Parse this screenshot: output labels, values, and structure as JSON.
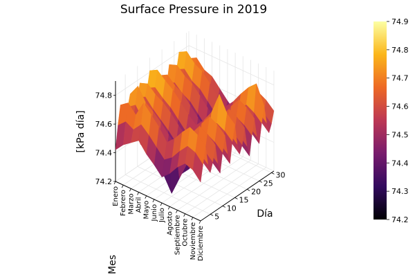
{
  "chart_data": {
    "type": "surface",
    "title": "Surface Pressure in 2019",
    "xlabel": "Mes",
    "ylabel": "Día",
    "zlabel": "[kPa día]",
    "x_categories": [
      "Enero",
      "Febrero",
      "Marzo",
      "Abril",
      "Mayo",
      "Junio",
      "Julio",
      "Agosto",
      "Septiembre",
      "Octubre",
      "Noviembre",
      "Diciembre"
    ],
    "y_ticks": [
      5,
      10,
      15,
      20,
      25,
      30
    ],
    "z_ticks": [
      "74.2",
      "74.4",
      "74.6",
      "74.8"
    ],
    "z_range": [
      74.2,
      74.9
    ],
    "y_range": [
      1,
      31
    ],
    "colorbar_ticks": [
      "74.2",
      "74.3",
      "74.4",
      "74.5",
      "74.6",
      "74.7",
      "74.8",
      "74.9"
    ],
    "colormap": [
      "#000004",
      "#320a5e",
      "#781c6d",
      "#bc3754",
      "#ed6925",
      "#fbb61a",
      "#fcffa4"
    ],
    "z_values": [
      [
        74.42,
        74.58,
        74.71,
        74.62,
        74.55,
        74.66,
        74.74,
        74.6,
        74.52,
        74.68,
        74.77,
        74.63,
        74.57,
        74.7,
        74.81,
        74.65,
        74.56,
        74.62,
        74.73,
        74.59,
        74.51,
        74.64,
        74.76,
        74.61,
        74.55,
        74.69,
        74.8,
        74.66,
        74.58,
        74.63,
        74.71
      ],
      [
        74.48,
        74.63,
        74.75,
        74.66,
        74.58,
        74.7,
        74.82,
        74.64,
        74.55,
        74.71,
        74.79,
        74.67,
        74.6,
        74.73,
        74.84,
        74.68,
        74.59,
        74.65,
        74.76,
        74.62,
        74.54,
        74.67,
        74.78,
        74.64,
        74.58,
        74.72,
        74.83,
        74.69,
        74.61,
        74.66,
        74.74
      ],
      [
        74.52,
        74.6,
        74.69,
        74.58,
        74.46,
        74.62,
        74.73,
        74.57,
        74.5,
        74.65,
        74.74,
        74.61,
        74.53,
        74.68,
        74.79,
        74.63,
        74.55,
        74.6,
        74.71,
        74.57,
        74.49,
        74.62,
        74.73,
        74.59,
        74.53,
        74.66,
        74.77,
        74.64,
        74.56,
        74.61,
        74.68
      ],
      [
        74.56,
        74.66,
        74.8,
        74.63,
        74.51,
        74.58,
        74.69,
        74.55,
        74.47,
        74.6,
        74.71,
        74.58,
        74.5,
        74.64,
        74.75,
        74.6,
        74.52,
        74.57,
        74.68,
        74.54,
        74.46,
        74.59,
        74.7,
        74.56,
        74.5,
        74.63,
        74.74,
        74.61,
        74.53,
        74.58,
        74.66
      ],
      [
        74.49,
        74.61,
        74.74,
        74.59,
        74.42,
        74.51,
        74.64,
        74.49,
        74.41,
        74.55,
        74.66,
        74.52,
        74.44,
        74.58,
        74.69,
        74.54,
        74.46,
        74.51,
        74.62,
        74.48,
        74.4,
        74.53,
        74.64,
        74.5,
        74.44,
        74.57,
        74.68,
        74.55,
        74.47,
        74.52,
        74.6
      ],
      [
        74.44,
        74.55,
        74.68,
        74.52,
        74.32,
        74.45,
        74.58,
        74.43,
        74.36,
        74.49,
        74.6,
        74.46,
        74.38,
        74.52,
        74.63,
        74.48,
        74.4,
        74.45,
        74.56,
        74.42,
        74.34,
        74.47,
        74.58,
        74.44,
        74.38,
        74.51,
        74.62,
        74.49,
        74.41,
        74.46,
        74.54
      ],
      [
        74.38,
        74.49,
        74.6,
        74.45,
        74.22,
        74.4,
        74.53,
        74.38,
        74.31,
        74.44,
        74.55,
        74.41,
        74.33,
        74.47,
        74.58,
        74.43,
        74.35,
        74.4,
        74.51,
        74.37,
        74.29,
        74.42,
        74.53,
        74.39,
        74.33,
        74.46,
        74.57,
        74.44,
        74.36,
        74.41,
        74.49
      ],
      [
        74.43,
        74.53,
        74.65,
        74.5,
        74.35,
        74.46,
        74.59,
        74.44,
        74.37,
        74.5,
        74.61,
        74.47,
        74.39,
        74.53,
        74.64,
        74.49,
        74.41,
        74.46,
        74.57,
        74.43,
        74.35,
        74.48,
        74.59,
        74.45,
        74.39,
        74.52,
        74.63,
        74.5,
        74.42,
        74.47,
        74.55
      ],
      [
        74.5,
        74.6,
        74.72,
        74.58,
        74.48,
        74.55,
        74.67,
        74.53,
        74.45,
        74.58,
        74.69,
        74.55,
        74.47,
        74.61,
        74.72,
        74.57,
        74.49,
        74.54,
        74.65,
        74.51,
        74.43,
        74.56,
        74.67,
        74.53,
        74.47,
        74.6,
        74.71,
        74.58,
        74.5,
        74.55,
        74.63
      ],
      [
        74.55,
        74.66,
        74.78,
        74.64,
        74.56,
        74.62,
        74.74,
        74.6,
        74.52,
        74.65,
        74.76,
        74.62,
        74.54,
        74.68,
        74.87,
        74.64,
        74.56,
        74.61,
        74.72,
        74.58,
        74.5,
        74.63,
        74.74,
        74.6,
        74.54,
        74.67,
        74.78,
        74.65,
        74.57,
        74.62,
        74.7
      ],
      [
        74.53,
        74.64,
        74.75,
        74.61,
        74.54,
        74.6,
        74.71,
        74.57,
        74.49,
        74.62,
        74.73,
        74.59,
        74.51,
        74.65,
        74.76,
        74.61,
        74.53,
        74.58,
        74.69,
        74.55,
        74.47,
        74.6,
        74.71,
        74.57,
        74.51,
        74.64,
        74.83,
        74.62,
        74.54,
        74.59,
        74.67
      ],
      [
        74.47,
        74.58,
        74.7,
        74.56,
        74.49,
        74.55,
        74.66,
        74.52,
        74.44,
        74.57,
        74.68,
        74.54,
        74.46,
        74.6,
        74.71,
        74.56,
        74.48,
        74.53,
        74.64,
        74.5,
        74.42,
        74.55,
        74.66,
        74.52,
        74.46,
        74.59,
        74.7,
        74.57,
        74.49,
        74.54,
        74.62
      ]
    ]
  }
}
